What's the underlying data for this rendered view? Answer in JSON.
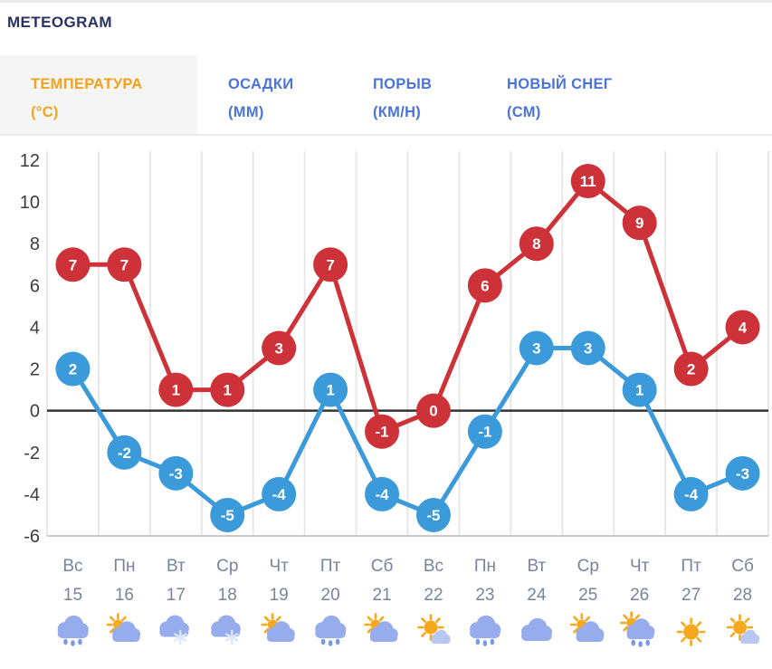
{
  "header": {
    "title": "METEOGRAM"
  },
  "tabs": [
    {
      "label": "ТЕМПЕРАТУРА",
      "unit": "(°C)",
      "active": true
    },
    {
      "label": "ОСАДКИ",
      "unit": "(ММ)",
      "active": false
    },
    {
      "label": "ПОРЫВ",
      "unit": "(КМ/Н)",
      "active": false
    },
    {
      "label": "НОВЫЙ СНЕГ",
      "unit": "(СМ)",
      "active": false
    }
  ],
  "colors": {
    "accent_active_tab": "#f2a31b",
    "tab_text": "#4a74dc",
    "title_navy": "#293264",
    "max_series": "#cc3238",
    "min_series": "#3b9ad9",
    "axis_label": "#3c3c3c",
    "day_label": "#76849e",
    "grid_line": "#e7e7e7",
    "axis_line": "#c9c9c9",
    "zero_line": "#333333",
    "cloud": "#97acec",
    "cloud_light": "#b9c7f3",
    "sun": "#f7a81c",
    "raindrop": "#7b97ea",
    "snowflake": "#dde7fb"
  },
  "chart_data": {
    "type": "line",
    "title": "METEOGRAM — temperature (°C)",
    "xlabel": "",
    "ylabel": "",
    "ylim": [
      -6,
      12
    ],
    "yticks": [
      12,
      10,
      8,
      6,
      4,
      2,
      0,
      -2,
      -4,
      -6
    ],
    "grid": "vertical",
    "zero_line": true,
    "legend": "none",
    "categories": [
      {
        "day": "Вс",
        "date": "15",
        "icon": "rain"
      },
      {
        "day": "Пн",
        "date": "16",
        "icon": "partly-sunny"
      },
      {
        "day": "Вт",
        "date": "17",
        "icon": "snow"
      },
      {
        "day": "Ср",
        "date": "18",
        "icon": "snow"
      },
      {
        "day": "Чт",
        "date": "19",
        "icon": "partly-sunny"
      },
      {
        "day": "Пт",
        "date": "20",
        "icon": "rain"
      },
      {
        "day": "Сб",
        "date": "21",
        "icon": "partly-sunny"
      },
      {
        "day": "Вс",
        "date": "22",
        "icon": "mostly-sunny"
      },
      {
        "day": "Пн",
        "date": "23",
        "icon": "rain"
      },
      {
        "day": "Вт",
        "date": "24",
        "icon": "cloudy"
      },
      {
        "day": "Ср",
        "date": "25",
        "icon": "partly-sunny"
      },
      {
        "day": "Чт",
        "date": "26",
        "icon": "sun-rain"
      },
      {
        "day": "Пт",
        "date": "27",
        "icon": "sunny"
      },
      {
        "day": "Сб",
        "date": "28",
        "icon": "mostly-sunny"
      }
    ],
    "series": [
      {
        "name": "max-temperature",
        "color": "#cc3238",
        "values": [
          7,
          7,
          1,
          1,
          3,
          7,
          -1,
          0,
          6,
          8,
          11,
          9,
          2,
          4
        ]
      },
      {
        "name": "min-temperature",
        "color": "#3b9ad9",
        "values": [
          2,
          -2,
          -3,
          -5,
          -4,
          1,
          -4,
          -5,
          -1,
          3,
          3,
          1,
          -4,
          -3
        ]
      }
    ]
  }
}
